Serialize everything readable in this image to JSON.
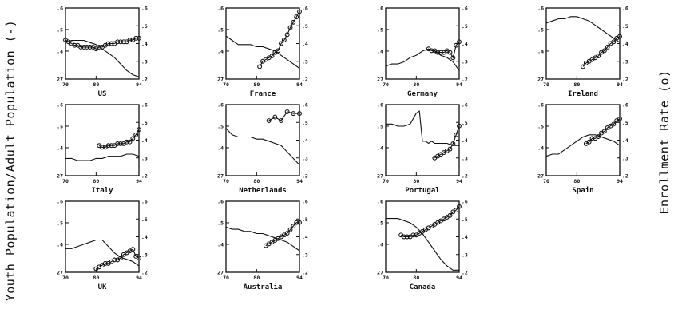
{
  "chart_data": {
    "type": "line",
    "ylabel_left": "Youth Population/Adult Population (-)",
    "ylabel_right": "Enrollment Rate (o)",
    "x_ticks": [
      "70",
      "80",
      "94"
    ],
    "xlim": [
      70,
      94
    ],
    "left_axis": {
      "ticks": [
        "27",
        ".4",
        ".5",
        ".6"
      ],
      "tick_values": [
        0.27,
        0.4,
        0.5,
        0.6
      ],
      "ylim": [
        0.27,
        0.6
      ]
    },
    "right_axis": {
      "ticks": [
        ".2",
        ".3",
        ".4",
        ".5",
        ".6"
      ],
      "tick_values": [
        0.2,
        0.3,
        0.4,
        0.5,
        0.6
      ],
      "ylim": [
        0.2,
        0.6
      ]
    },
    "panels": [
      {
        "country": "US",
        "youth_ratio": {
          "x": [
            70,
            72,
            74,
            76,
            78,
            80,
            82,
            84,
            86,
            88,
            90,
            92,
            94
          ],
          "y": [
            0.44,
            0.45,
            0.45,
            0.45,
            0.44,
            0.43,
            0.41,
            0.39,
            0.37,
            0.34,
            0.31,
            0.29,
            0.28
          ]
        },
        "enrollment": {
          "x": [
            70,
            71,
            72,
            73,
            74,
            75,
            76,
            77,
            78,
            79,
            80,
            81,
            82,
            83,
            84,
            85,
            86,
            87,
            88,
            89,
            90,
            91,
            92,
            93,
            94
          ],
          "y": [
            0.42,
            0.41,
            0.4,
            0.39,
            0.39,
            0.38,
            0.38,
            0.38,
            0.38,
            0.38,
            0.37,
            0.38,
            0.38,
            0.39,
            0.4,
            0.4,
            0.4,
            0.41,
            0.41,
            0.41,
            0.41,
            0.42,
            0.42,
            0.43,
            0.43
          ]
        }
      },
      {
        "country": "France",
        "youth_ratio": {
          "x": [
            70,
            72,
            74,
            76,
            78,
            80,
            82,
            84,
            86,
            88,
            90,
            92,
            94
          ],
          "y": [
            0.47,
            0.45,
            0.43,
            0.43,
            0.43,
            0.42,
            0.42,
            0.41,
            0.4,
            0.38,
            0.36,
            0.34,
            0.32
          ]
        },
        "enrollment": {
          "x": [
            81,
            82,
            83,
            84,
            85,
            86,
            87,
            88,
            89,
            90,
            91,
            92,
            93,
            94
          ],
          "y": [
            0.27,
            0.3,
            0.31,
            0.32,
            0.33,
            0.35,
            0.36,
            0.4,
            0.42,
            0.45,
            0.49,
            0.52,
            0.55,
            0.58
          ]
        }
      },
      {
        "country": "Germany",
        "youth_ratio": {
          "x": [
            70,
            72,
            74,
            76,
            78,
            80,
            82,
            84,
            86,
            88,
            90,
            92,
            94
          ],
          "y": [
            0.33,
            0.34,
            0.34,
            0.35,
            0.37,
            0.38,
            0.4,
            0.41,
            0.4,
            0.38,
            0.37,
            0.35,
            0.31
          ]
        },
        "enrollment": {
          "x": [
            84,
            85,
            86,
            87,
            88,
            89,
            90,
            91,
            92,
            93,
            94
          ],
          "y": [
            0.37,
            0.36,
            0.36,
            0.35,
            0.35,
            0.35,
            0.36,
            0.35,
            0.32,
            0.39,
            0.41
          ]
        }
      },
      {
        "country": "Ireland",
        "youth_ratio": {
          "x": [
            70,
            72,
            74,
            76,
            78,
            80,
            82,
            84,
            86,
            88,
            90,
            92,
            94
          ],
          "y": [
            0.53,
            0.54,
            0.55,
            0.55,
            0.56,
            0.56,
            0.55,
            0.54,
            0.52,
            0.5,
            0.48,
            0.46,
            0.44
          ]
        },
        "enrollment": {
          "x": [
            82,
            83,
            84,
            85,
            86,
            87,
            88,
            89,
            90,
            91,
            92,
            93,
            94
          ],
          "y": [
            0.27,
            0.29,
            0.3,
            0.31,
            0.32,
            0.33,
            0.35,
            0.36,
            0.38,
            0.4,
            0.41,
            0.43,
            0.44
          ]
        }
      },
      {
        "country": "Italy",
        "youth_ratio": {
          "x": [
            70,
            72,
            74,
            76,
            78,
            80,
            82,
            84,
            86,
            88,
            90,
            92,
            94
          ],
          "y": [
            0.35,
            0.35,
            0.34,
            0.34,
            0.34,
            0.35,
            0.35,
            0.36,
            0.36,
            0.36,
            0.37,
            0.37,
            0.36
          ]
        },
        "enrollment": {
          "x": [
            81,
            82,
            83,
            84,
            85,
            86,
            87,
            88,
            89,
            90,
            91,
            92,
            93,
            94
          ],
          "y": [
            0.37,
            0.36,
            0.36,
            0.37,
            0.37,
            0.37,
            0.38,
            0.38,
            0.38,
            0.39,
            0.39,
            0.41,
            0.43,
            0.46
          ]
        }
      },
      {
        "country": "Netherlands",
        "youth_ratio": {
          "x": [
            70,
            72,
            74,
            76,
            78,
            80,
            82,
            84,
            86,
            88,
            90,
            92,
            94
          ],
          "y": [
            0.49,
            0.46,
            0.45,
            0.45,
            0.45,
            0.44,
            0.44,
            0.43,
            0.42,
            0.41,
            0.38,
            0.35,
            0.32
          ]
        },
        "enrollment": {
          "x": [
            84,
            86,
            88,
            90,
            92,
            94
          ],
          "y": [
            0.51,
            0.53,
            0.51,
            0.56,
            0.55,
            0.55
          ]
        }
      },
      {
        "country": "Portugal",
        "youth_ratio": {
          "x": [
            70,
            72,
            74,
            76,
            78,
            80,
            81,
            82,
            83,
            84,
            85,
            86,
            88,
            90,
            92,
            94
          ],
          "y": [
            0.51,
            0.51,
            0.5,
            0.5,
            0.51,
            0.56,
            0.57,
            0.43,
            0.43,
            0.42,
            0.43,
            0.42,
            0.42,
            0.42,
            0.41,
            0.41
          ]
        },
        "enrollment": {
          "x": [
            86,
            87,
            88,
            89,
            90,
            91,
            92,
            93,
            94
          ],
          "y": [
            0.3,
            0.31,
            0.32,
            0.33,
            0.34,
            0.35,
            0.38,
            0.43,
            0.48
          ]
        }
      },
      {
        "country": "Spain",
        "youth_ratio": {
          "x": [
            70,
            72,
            74,
            76,
            78,
            80,
            82,
            84,
            86,
            88,
            90,
            92,
            94
          ],
          "y": [
            0.36,
            0.37,
            0.37,
            0.39,
            0.41,
            0.43,
            0.45,
            0.46,
            0.46,
            0.45,
            0.44,
            0.43,
            0.41
          ]
        },
        "enrollment": {
          "x": [
            83,
            84,
            85,
            86,
            87,
            88,
            89,
            90,
            91,
            92,
            93,
            94
          ],
          "y": [
            0.38,
            0.39,
            0.41,
            0.41,
            0.42,
            0.44,
            0.45,
            0.47,
            0.48,
            0.49,
            0.51,
            0.52
          ]
        }
      },
      {
        "country": "UK",
        "youth_ratio": {
          "x": [
            70,
            72,
            74,
            76,
            78,
            80,
            82,
            84,
            86,
            88,
            90,
            92,
            94
          ],
          "y": [
            0.38,
            0.38,
            0.39,
            0.4,
            0.41,
            0.42,
            0.42,
            0.39,
            0.36,
            0.34,
            0.33,
            0.32,
            0.3
          ]
        },
        "enrollment": {
          "x": [
            80,
            81,
            82,
            83,
            84,
            85,
            86,
            87,
            88,
            89,
            90,
            91,
            92,
            93,
            94
          ],
          "y": [
            0.22,
            0.23,
            0.24,
            0.25,
            0.25,
            0.26,
            0.27,
            0.27,
            0.28,
            0.3,
            0.31,
            0.32,
            0.33,
            0.29,
            0.28
          ]
        }
      },
      {
        "country": "Australia",
        "youth_ratio": {
          "x": [
            70,
            72,
            74,
            76,
            78,
            80,
            82,
            84,
            86,
            88,
            90,
            92,
            94
          ],
          "y": [
            0.48,
            0.47,
            0.47,
            0.46,
            0.46,
            0.45,
            0.45,
            0.44,
            0.43,
            0.42,
            0.41,
            0.39,
            0.37
          ]
        },
        "enrollment": {
          "x": [
            83,
            84,
            85,
            86,
            87,
            88,
            89,
            90,
            91,
            92,
            93,
            94
          ],
          "y": [
            0.35,
            0.36,
            0.37,
            0.38,
            0.39,
            0.4,
            0.41,
            0.42,
            0.44,
            0.46,
            0.48,
            0.48
          ]
        }
      },
      {
        "country": "Canada",
        "youth_ratio": {
          "x": [
            70,
            72,
            74,
            76,
            78,
            80,
            82,
            84,
            86,
            88,
            90,
            92,
            94
          ],
          "y": [
            0.52,
            0.52,
            0.52,
            0.51,
            0.5,
            0.48,
            0.45,
            0.41,
            0.37,
            0.33,
            0.3,
            0.28,
            0.28
          ]
        },
        "enrollment": {
          "x": [
            75,
            76,
            77,
            78,
            79,
            80,
            81,
            82,
            83,
            84,
            85,
            86,
            87,
            88,
            89,
            90,
            91,
            92,
            93,
            94
          ],
          "y": [
            0.41,
            0.4,
            0.4,
            0.4,
            0.41,
            0.41,
            0.42,
            0.43,
            0.44,
            0.45,
            0.46,
            0.47,
            0.48,
            0.49,
            0.5,
            0.51,
            0.52,
            0.54,
            0.55,
            0.57
          ]
        }
      }
    ]
  }
}
